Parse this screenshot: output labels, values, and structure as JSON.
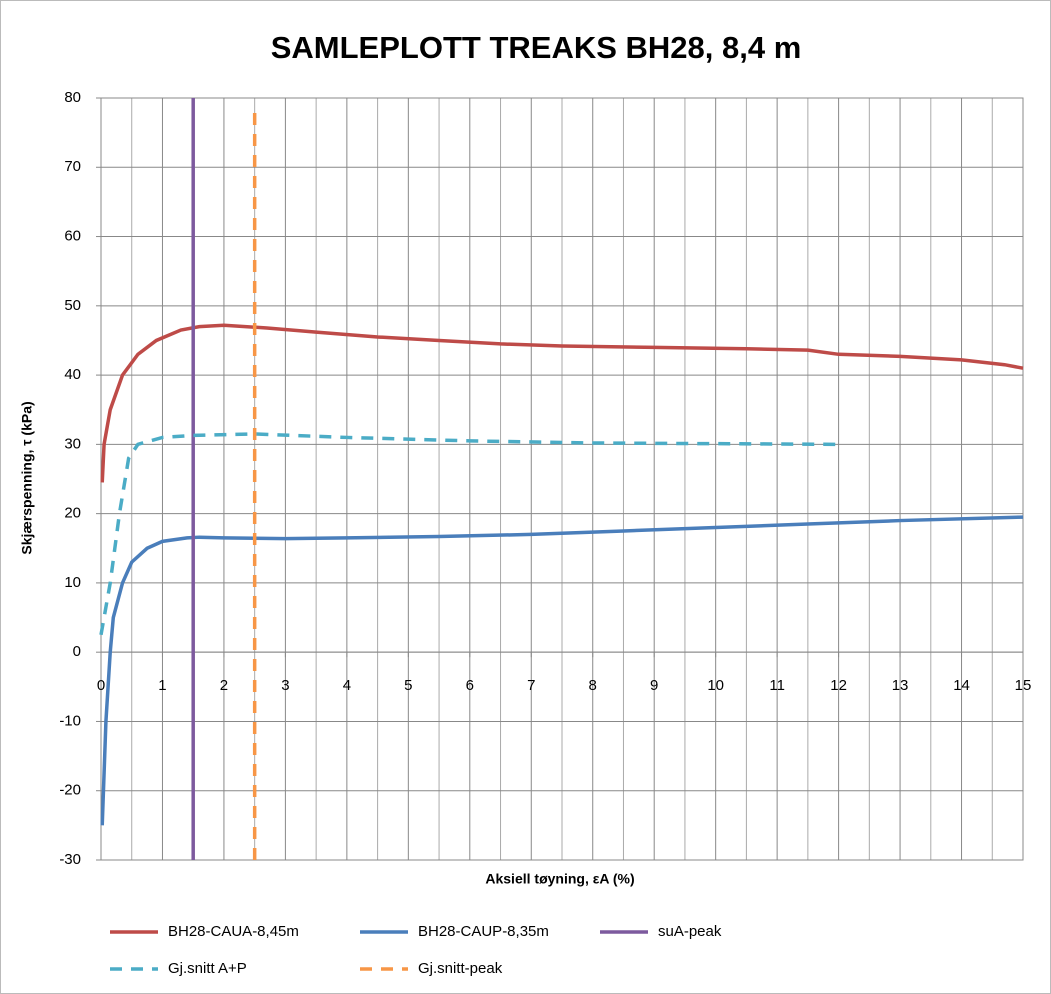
{
  "chart_data": {
    "type": "line",
    "title": "SAMLEPLOTT TREAKS BH28, 8,4 m",
    "xlabel": "Aksiell tøyning, εA (%)",
    "ylabel": "Skjærspenning, τ (kPa)",
    "xlim": [
      0,
      15
    ],
    "xticks": [
      0,
      1,
      2,
      3,
      4,
      5,
      6,
      7,
      8,
      9,
      10,
      11,
      12,
      13,
      14,
      15
    ],
    "ylim": [
      -30,
      80
    ],
    "yticks": [
      -30,
      -20,
      -10,
      0,
      10,
      20,
      30,
      40,
      50,
      60,
      70,
      80
    ],
    "grid": true,
    "minor_xgrid": true,
    "legend": "bottom",
    "series": [
      {
        "name": "BH28-CAUA-8,45m",
        "color": "#be4b48",
        "dash": false,
        "x": [
          0.02,
          0.05,
          0.15,
          0.35,
          0.6,
          0.9,
          1.3,
          1.6,
          2,
          2.7,
          3.5,
          4.5,
          5.5,
          6.5,
          7.5,
          9,
          10.5,
          11.5,
          12,
          13,
          14,
          14.7,
          15
        ],
        "values": [
          24.5,
          30,
          35,
          40,
          43,
          45,
          46.5,
          47,
          47.2,
          46.8,
          46.2,
          45.5,
          45,
          44.5,
          44.2,
          44,
          43.8,
          43.6,
          43,
          42.7,
          42.2,
          41.5,
          41
        ]
      },
      {
        "name": "BH28-CAUP-8,35m",
        "color": "#4a7ebb",
        "dash": false,
        "x": [
          0.02,
          0.08,
          0.15,
          0.2,
          0.35,
          0.5,
          0.75,
          1.0,
          1.4,
          1.6,
          2,
          3,
          4,
          5.5,
          7,
          8.5,
          10,
          11.5,
          13,
          15
        ],
        "values": [
          -25,
          -10,
          0,
          5,
          10,
          13,
          15,
          16,
          16.5,
          16.6,
          16.5,
          16.4,
          16.5,
          16.7,
          17,
          17.5,
          18,
          18.5,
          19,
          19.5
        ]
      },
      {
        "name": "suA-peak",
        "color": "#7d5a9e",
        "dash": false,
        "x": [
          1.5,
          1.5
        ],
        "values": [
          -30,
          80
        ]
      },
      {
        "name": "Gj.snitt A+P",
        "color": "#4bacc6",
        "dash": true,
        "x": [
          0,
          0.15,
          0.3,
          0.45,
          0.6,
          1,
          1.5,
          2.5,
          4,
          6,
          8,
          12
        ],
        "values": [
          2.5,
          10,
          20,
          28,
          30,
          31,
          31.3,
          31.5,
          31,
          30.5,
          30.2,
          30
        ]
      },
      {
        "name": "Gj.snitt-peak",
        "color": "#f79646",
        "dash": true,
        "x": [
          2.5,
          2.5
        ],
        "values": [
          -30,
          78
        ]
      }
    ]
  }
}
